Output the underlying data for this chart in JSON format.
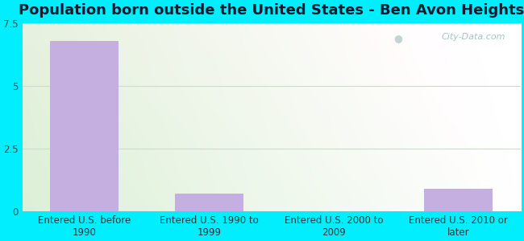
{
  "title": "Population born outside the United States - Ben Avon Heights",
  "categories": [
    "Entered U.S. before\n1990",
    "Entered U.S. 1990 to\n1999",
    "Entered U.S. 2000 to\n2009",
    "Entered U.S. 2010 or\nlater"
  ],
  "values": [
    6.8,
    0.7,
    0.0,
    0.9
  ],
  "bar_color": "#c5aee0",
  "ylim": [
    0,
    7.5
  ],
  "yticks": [
    0,
    2.5,
    5,
    7.5
  ],
  "background_outer": "#00eeff",
  "watermark": "City-Data.com",
  "title_fontsize": 13,
  "tick_fontsize": 8.5,
  "bar_width": 0.55,
  "grid_color": "#ccddcc",
  "title_color": "#1a1a2e"
}
